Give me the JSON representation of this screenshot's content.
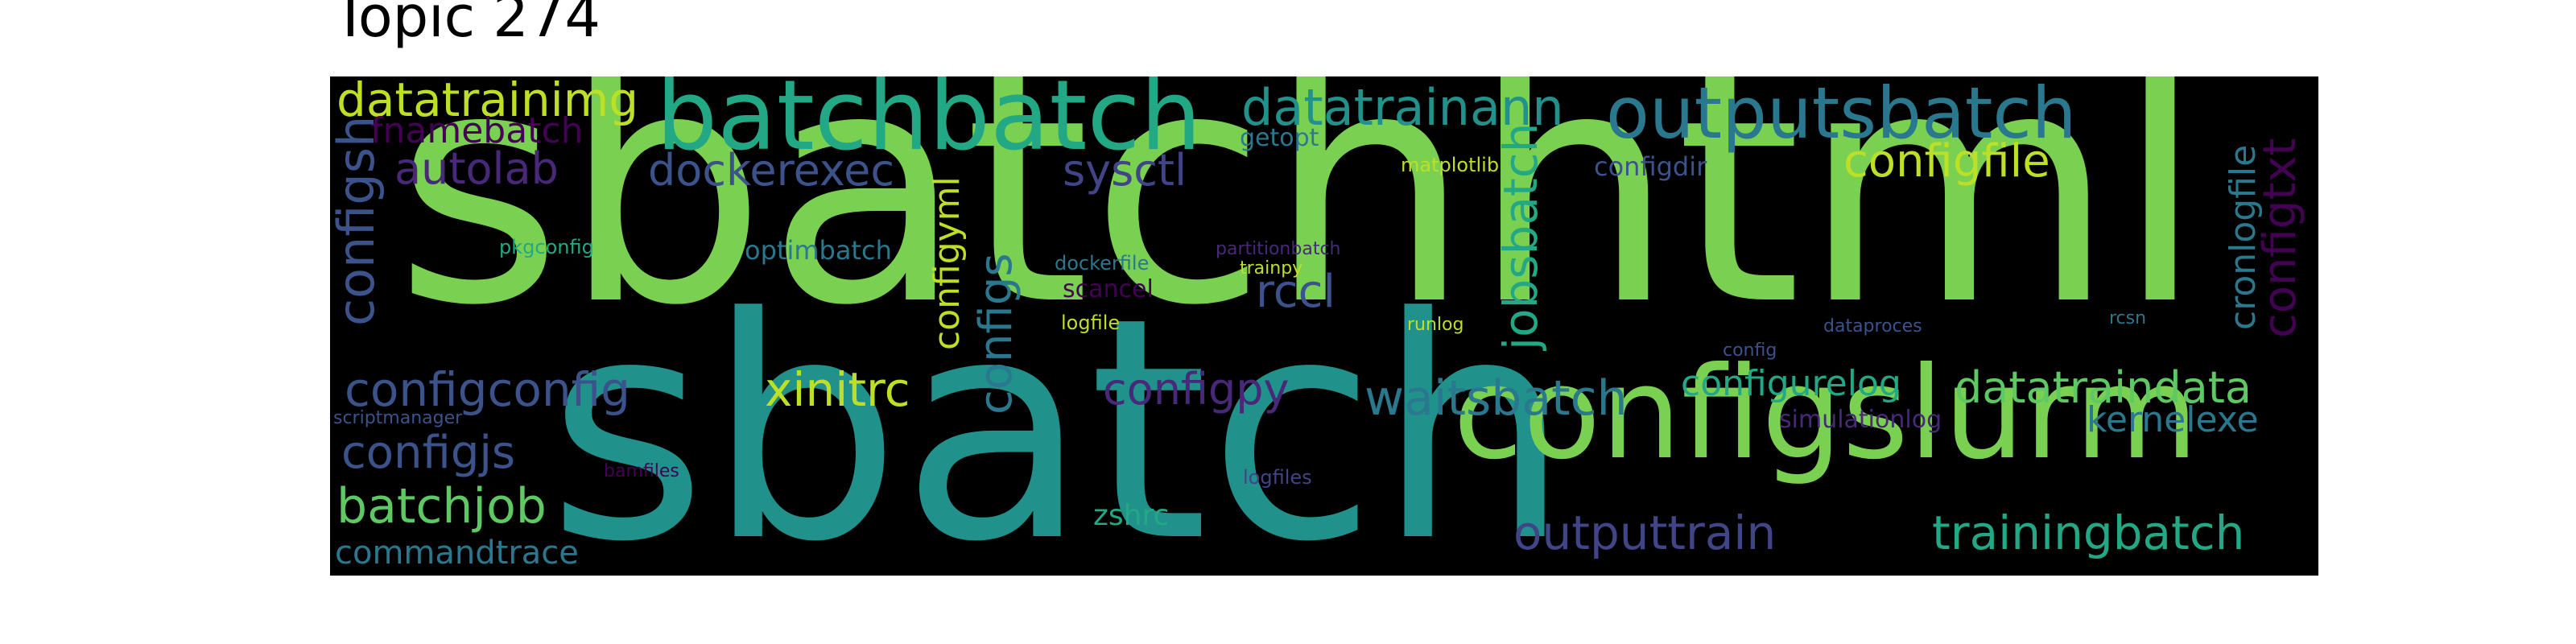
{
  "title": "Topic 274",
  "words": [
    {
      "text": "sbatchhtml",
      "color": "#7ad151",
      "orientation": "h"
    },
    {
      "text": "sbatch",
      "color": "#21918c",
      "orientation": "h"
    },
    {
      "text": "configslurm",
      "color": "#7ad151",
      "orientation": "h"
    },
    {
      "text": "batchbatch",
      "color": "#22a884",
      "orientation": "h"
    },
    {
      "text": "outputsbatch",
      "color": "#2a788e",
      "orientation": "h"
    },
    {
      "text": "datatrainann",
      "color": "#21918c",
      "orientation": "h"
    },
    {
      "text": "datatrainimg",
      "color": "#bddf26",
      "orientation": "h"
    },
    {
      "text": "fnamebatch",
      "color": "#440154",
      "orientation": "h"
    },
    {
      "text": "autolab",
      "color": "#482878",
      "orientation": "h"
    },
    {
      "text": "dockerexec",
      "color": "#3b528b",
      "orientation": "h"
    },
    {
      "text": "sysctl",
      "color": "#414487",
      "orientation": "h"
    },
    {
      "text": "getopt",
      "color": "#2a788e",
      "orientation": "h"
    },
    {
      "text": "matplotlib",
      "color": "#bddf26",
      "orientation": "h"
    },
    {
      "text": "configdir",
      "color": "#3b528b",
      "orientation": "h"
    },
    {
      "text": "configfile",
      "color": "#bddf26",
      "orientation": "h"
    },
    {
      "text": "configsh",
      "color": "#3b528b",
      "orientation": "v"
    },
    {
      "text": "configyml",
      "color": "#bddf26",
      "orientation": "v"
    },
    {
      "text": "configs",
      "color": "#2a788e",
      "orientation": "v"
    },
    {
      "text": "jobsbatch",
      "color": "#22a884",
      "orientation": "v"
    },
    {
      "text": "cronlogfile",
      "color": "#2a788e",
      "orientation": "v"
    },
    {
      "text": "configtxt",
      "color": "#440154",
      "orientation": "v"
    },
    {
      "text": "pkgconfig",
      "color": "#22a884",
      "orientation": "h"
    },
    {
      "text": "optimbatch",
      "color": "#2a788e",
      "orientation": "h"
    },
    {
      "text": "partitionbatch",
      "color": "#482878",
      "orientation": "h"
    },
    {
      "text": "dockerfile",
      "color": "#2a788e",
      "orientation": "h"
    },
    {
      "text": "trainpy",
      "color": "#bddf26",
      "orientation": "h"
    },
    {
      "text": "scancel",
      "color": "#440154",
      "orientation": "h"
    },
    {
      "text": "rccl",
      "color": "#3b528b",
      "orientation": "h"
    },
    {
      "text": "logfile",
      "color": "#bddf26",
      "orientation": "h"
    },
    {
      "text": "runlog",
      "color": "#bddf26",
      "orientation": "h"
    },
    {
      "text": "dataproces",
      "color": "#3b528b",
      "orientation": "h"
    },
    {
      "text": "rcsn",
      "color": "#2a788e",
      "orientation": "h"
    },
    {
      "text": "config",
      "color": "#3b528b",
      "orientation": "h"
    },
    {
      "text": "configconfig",
      "color": "#3b528b",
      "orientation": "h"
    },
    {
      "text": "xinitrc",
      "color": "#bddf26",
      "orientation": "h"
    },
    {
      "text": "configpy",
      "color": "#482878",
      "orientation": "h"
    },
    {
      "text": "waitsbatch",
      "color": "#2a788e",
      "orientation": "h"
    },
    {
      "text": "configurelog",
      "color": "#22a884",
      "orientation": "h"
    },
    {
      "text": "datatraindata",
      "color": "#5ec962",
      "orientation": "h"
    },
    {
      "text": "kernelexe",
      "color": "#2a788e",
      "orientation": "h"
    },
    {
      "text": "simulationlog",
      "color": "#482878",
      "orientation": "h"
    },
    {
      "text": "scriptmanager",
      "color": "#3b528b",
      "orientation": "h"
    },
    {
      "text": "configjs",
      "color": "#3b528b",
      "orientation": "h"
    },
    {
      "text": "bamfiles",
      "color": "#440154",
      "orientation": "h"
    },
    {
      "text": "logfiles",
      "color": "#414487",
      "orientation": "h"
    },
    {
      "text": "batchjob",
      "color": "#5ec962",
      "orientation": "h"
    },
    {
      "text": "zshrc",
      "color": "#22a884",
      "orientation": "h"
    },
    {
      "text": "outputtrain",
      "color": "#414487",
      "orientation": "h"
    },
    {
      "text": "trainingbatch",
      "color": "#22a884",
      "orientation": "h"
    },
    {
      "text": "commandtrace",
      "color": "#2a788e",
      "orientation": "h"
    }
  ]
}
